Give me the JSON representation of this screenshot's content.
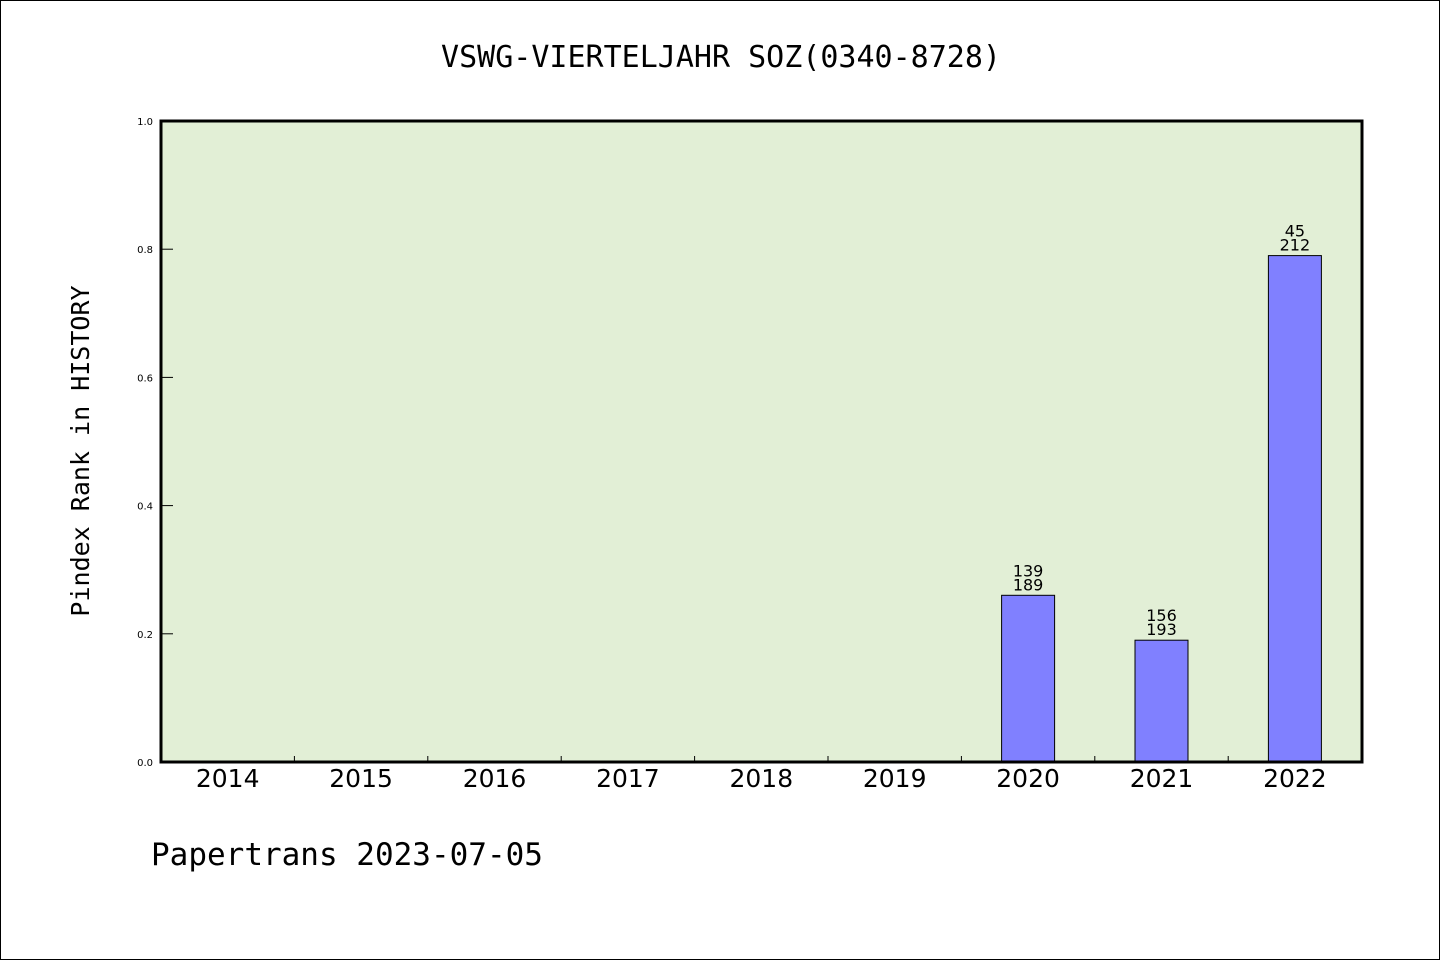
{
  "chart_data": {
    "type": "bar",
    "title": "VSWG-VIERTELJAHR SOZ(0340-8728)",
    "ylabel": "Pindex Rank in HISTORY",
    "xlabel": "",
    "categories": [
      "2014",
      "2015",
      "2016",
      "2017",
      "2018",
      "2019",
      "2020",
      "2021",
      "2022"
    ],
    "values": [
      0,
      0,
      0,
      0,
      0,
      0,
      0.26,
      0.19,
      0.79
    ],
    "bar_labels": [
      null,
      null,
      null,
      null,
      null,
      null,
      {
        "rank": "139",
        "total": "189"
      },
      {
        "rank": "156",
        "total": "193"
      },
      {
        "rank": "45",
        "total": "212"
      }
    ],
    "ylim": [
      0,
      1.0
    ],
    "yticks": [
      "0.0",
      "0.2",
      "0.4",
      "0.6",
      "0.8",
      "1.0"
    ],
    "grid": false,
    "legend": "none",
    "colors": {
      "plot_background": "#e2efd6",
      "bar_fill": "#8080ff",
      "bar_stroke": "#000000",
      "axis": "#000000"
    }
  },
  "footer": {
    "text": "Papertrans 2023-07-05"
  }
}
